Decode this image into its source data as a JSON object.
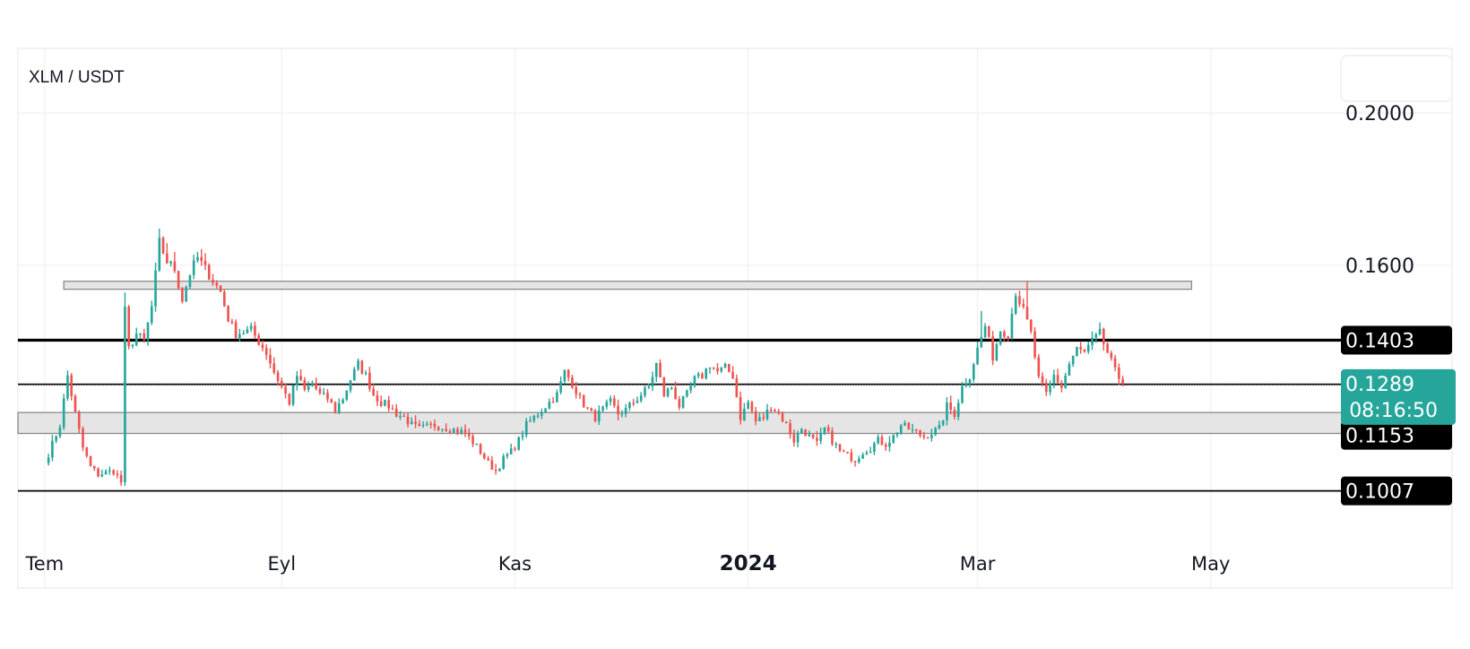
{
  "chart_data": {
    "type": "candlestick",
    "title": "XLM / USDT",
    "x_ticks": [
      {
        "label": "Tem",
        "date": "2023-07-01",
        "bold": false
      },
      {
        "label": "Eyl",
        "date": "2023-09-01",
        "bold": false
      },
      {
        "label": "Kas",
        "date": "2023-11-01",
        "bold": false
      },
      {
        "label": "2024",
        "date": "2024-01-01",
        "bold": true
      },
      {
        "label": "Mar",
        "date": "2024-03-01",
        "bold": false
      },
      {
        "label": "May",
        "date": "2024-05-01",
        "bold": false
      }
    ],
    "y_ticks": [
      {
        "label": "0.2000",
        "value": 0.2
      },
      {
        "label": "0.1600",
        "value": 0.16
      }
    ],
    "x_range": [
      "2023-06-24",
      "2024-06-05"
    ],
    "y_range": [
      0.086,
      0.217
    ],
    "grid": true,
    "colors": {
      "up": "#26a69a",
      "down": "#ef5350",
      "last_price_tag": "#26a69a",
      "level_tag": "#000000"
    },
    "horizontal_lines": [
      {
        "value": 0.1403,
        "label": "0.1403",
        "style": "thick"
      },
      {
        "value": 0.1287,
        "label": "0.1287",
        "style": "thin"
      },
      {
        "value": 0.1007,
        "label": "0.1007",
        "style": "thin"
      }
    ],
    "extra_level_tags": [
      {
        "value": 0.1153,
        "label": "0.1153"
      }
    ],
    "last_price": {
      "value": 0.1289,
      "label": "0.1289",
      "countdown": "08:16:50"
    },
    "zones": [
      {
        "from": "2023-07-06",
        "to": "2024-04-26",
        "low": 0.1537,
        "high": 0.1558
      },
      {
        "from": "2023-06-24",
        "to": "2024-06-05",
        "low": 0.1158,
        "high": 0.1213
      }
    ],
    "path": [
      [
        "2023-07-01",
        0.108
      ],
      [
        "2023-07-05",
        0.118
      ],
      [
        "2023-07-07",
        0.131
      ],
      [
        "2023-07-09",
        0.121
      ],
      [
        "2023-07-11",
        0.112
      ],
      [
        "2023-07-13",
        0.107
      ],
      [
        "2023-07-15",
        0.105
      ],
      [
        "2023-07-19",
        0.106
      ],
      [
        "2023-07-21",
        0.103
      ],
      [
        "2023-07-22",
        0.148
      ],
      [
        "2023-07-23",
        0.138
      ],
      [
        "2023-07-25",
        0.142
      ],
      [
        "2023-07-27",
        0.14
      ],
      [
        "2023-07-29",
        0.149
      ],
      [
        "2023-07-31",
        0.166
      ],
      [
        "2023-08-02",
        0.161
      ],
      [
        "2023-08-04",
        0.159
      ],
      [
        "2023-08-06",
        0.151
      ],
      [
        "2023-08-08",
        0.158
      ],
      [
        "2023-08-10",
        0.162
      ],
      [
        "2023-08-12",
        0.159
      ],
      [
        "2023-08-14",
        0.156
      ],
      [
        "2023-08-16",
        0.153
      ],
      [
        "2023-08-18",
        0.146
      ],
      [
        "2023-08-20",
        0.142
      ],
      [
        "2023-08-24",
        0.143
      ],
      [
        "2023-08-28",
        0.137
      ],
      [
        "2023-08-30",
        0.132
      ],
      [
        "2023-09-01",
        0.128
      ],
      [
        "2023-09-03",
        0.124
      ],
      [
        "2023-09-05",
        0.131
      ],
      [
        "2023-09-07",
        0.127
      ],
      [
        "2023-09-09",
        0.129
      ],
      [
        "2023-09-11",
        0.126
      ],
      [
        "2023-09-13",
        0.125
      ],
      [
        "2023-09-15",
        0.122
      ],
      [
        "2023-09-17",
        0.125
      ],
      [
        "2023-09-19",
        0.13
      ],
      [
        "2023-09-21",
        0.134
      ],
      [
        "2023-09-23",
        0.131
      ],
      [
        "2023-09-25",
        0.126
      ],
      [
        "2023-09-27",
        0.124
      ],
      [
        "2023-09-29",
        0.123
      ],
      [
        "2023-10-01",
        0.121
      ],
      [
        "2023-10-03",
        0.12
      ],
      [
        "2023-10-05",
        0.118
      ],
      [
        "2023-10-07",
        0.117
      ],
      [
        "2023-10-11",
        0.118
      ],
      [
        "2023-10-15",
        0.117
      ],
      [
        "2023-10-19",
        0.116
      ],
      [
        "2023-10-23",
        0.111
      ],
      [
        "2023-10-25",
        0.108
      ],
      [
        "2023-10-27",
        0.106
      ],
      [
        "2023-10-29",
        0.109
      ],
      [
        "2023-10-31",
        0.111
      ],
      [
        "2023-11-02",
        0.114
      ],
      [
        "2023-11-04",
        0.118
      ],
      [
        "2023-11-06",
        0.12
      ],
      [
        "2023-11-08",
        0.122
      ],
      [
        "2023-11-10",
        0.124
      ],
      [
        "2023-11-12",
        0.126
      ],
      [
        "2023-11-14",
        0.132
      ],
      [
        "2023-11-16",
        0.129
      ],
      [
        "2023-11-18",
        0.125
      ],
      [
        "2023-11-20",
        0.122
      ],
      [
        "2023-11-22",
        0.12
      ],
      [
        "2023-11-24",
        0.122
      ],
      [
        "2023-11-26",
        0.124
      ],
      [
        "2023-11-28",
        0.121
      ],
      [
        "2023-11-30",
        0.122
      ],
      [
        "2023-12-02",
        0.124
      ],
      [
        "2023-12-04",
        0.126
      ],
      [
        "2023-12-06",
        0.128
      ],
      [
        "2023-12-08",
        0.134
      ],
      [
        "2023-12-10",
        0.126
      ],
      [
        "2023-12-12",
        0.128
      ],
      [
        "2023-12-14",
        0.123
      ],
      [
        "2023-12-16",
        0.126
      ],
      [
        "2023-12-18",
        0.13
      ],
      [
        "2023-12-20",
        0.131
      ],
      [
        "2023-12-22",
        0.134
      ],
      [
        "2023-12-24",
        0.132
      ],
      [
        "2023-12-26",
        0.133
      ],
      [
        "2023-12-28",
        0.131
      ],
      [
        "2023-12-30",
        0.12
      ],
      [
        "2024-01-01",
        0.124
      ],
      [
        "2024-01-03",
        0.119
      ],
      [
        "2024-01-05",
        0.12
      ],
      [
        "2024-01-07",
        0.123
      ],
      [
        "2024-01-09",
        0.121
      ],
      [
        "2024-01-11",
        0.118
      ],
      [
        "2024-01-13",
        0.114
      ],
      [
        "2024-01-15",
        0.117
      ],
      [
        "2024-01-17",
        0.115
      ],
      [
        "2024-01-19",
        0.113
      ],
      [
        "2024-01-21",
        0.117
      ],
      [
        "2024-01-23",
        0.114
      ],
      [
        "2024-01-25",
        0.111
      ],
      [
        "2024-01-27",
        0.11
      ],
      [
        "2024-01-29",
        0.109
      ],
      [
        "2024-01-31",
        0.111
      ],
      [
        "2024-02-02",
        0.112
      ],
      [
        "2024-02-04",
        0.114
      ],
      [
        "2024-02-06",
        0.113
      ],
      [
        "2024-02-08",
        0.115
      ],
      [
        "2024-02-10",
        0.118
      ],
      [
        "2024-02-12",
        0.117
      ],
      [
        "2024-02-14",
        0.116
      ],
      [
        "2024-02-16",
        0.115
      ],
      [
        "2024-02-18",
        0.116
      ],
      [
        "2024-02-20",
        0.117
      ],
      [
        "2024-02-22",
        0.123
      ],
      [
        "2024-02-24",
        0.121
      ],
      [
        "2024-02-26",
        0.128
      ],
      [
        "2024-02-28",
        0.131
      ],
      [
        "2024-03-01",
        0.138
      ],
      [
        "2024-03-03",
        0.144
      ],
      [
        "2024-03-05",
        0.136
      ],
      [
        "2024-03-07",
        0.143
      ],
      [
        "2024-03-09",
        0.142
      ],
      [
        "2024-03-11",
        0.153
      ],
      [
        "2024-03-13",
        0.148
      ],
      [
        "2024-03-15",
        0.142
      ],
      [
        "2024-03-17",
        0.13
      ],
      [
        "2024-03-19",
        0.126
      ],
      [
        "2024-03-21",
        0.131
      ],
      [
        "2024-03-23",
        0.128
      ],
      [
        "2024-03-25",
        0.134
      ],
      [
        "2024-03-27",
        0.138
      ],
      [
        "2024-03-29",
        0.137
      ],
      [
        "2024-03-31",
        0.14
      ],
      [
        "2024-04-02",
        0.142
      ],
      [
        "2024-04-04",
        0.137
      ],
      [
        "2024-04-06",
        0.132
      ],
      [
        "2024-04-08",
        0.1289
      ]
    ]
  },
  "icons": {
    "top_right_box": "empty-widget-box"
  }
}
